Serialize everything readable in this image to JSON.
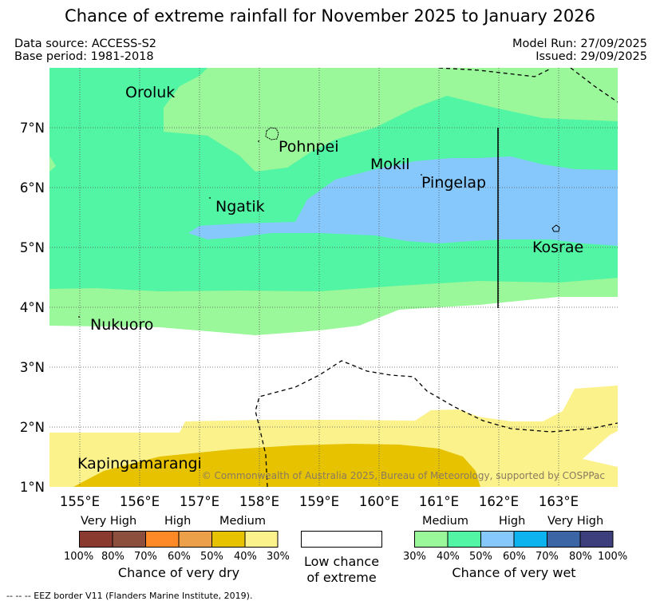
{
  "title": "Chance of extreme rainfall for November 2025 to January 2026",
  "meta": {
    "data_source": "Data source: ACCESS-S2",
    "base_period": "Base period: 1981-2018",
    "model_run": "Model Run: 27/09/2025",
    "issued": "Issued: 29/09/2025"
  },
  "map": {
    "lat_labels": [
      "7°N",
      "6°N",
      "5°N",
      "4°N",
      "3°N",
      "2°N",
      "1°N"
    ],
    "lon_labels": [
      "155°E",
      "156°E",
      "157°E",
      "158°E",
      "159°E",
      "160°E",
      "161°E",
      "162°E",
      "163°E"
    ],
    "places": [
      {
        "name": "Oroluk"
      },
      {
        "name": "Pohnpei"
      },
      {
        "name": "Mokil"
      },
      {
        "name": "Pingelap"
      },
      {
        "name": "Ngatik"
      },
      {
        "name": "Kosrae"
      },
      {
        "name": "Nukuoro"
      },
      {
        "name": "Kapingamarangi"
      }
    ],
    "copyright": "© Commonwealth of Australia 2025, Bureau of Meteorology, supported by COSPPac"
  },
  "legend": {
    "dry": {
      "categories": [
        "Very High",
        "High",
        "Medium"
      ],
      "ticks": [
        "100%",
        "80%",
        "70%",
        "60%",
        "50%",
        "40%",
        "30%"
      ],
      "colors": [
        "#8b3a2f",
        "#8c4f3d",
        "#fd8a26",
        "#eca04a",
        "#e6c200",
        "#fbf28c"
      ],
      "caption": "Chance of very dry"
    },
    "neutral": {
      "caption_line1": "Low chance",
      "caption_line2": "of extreme",
      "color": "#ffffff"
    },
    "wet": {
      "categories": [
        "Medium",
        "High",
        "Very High"
      ],
      "ticks": [
        "30%",
        "40%",
        "50%",
        "60%",
        "70%",
        "80%",
        "100%"
      ],
      "colors": [
        "#9af79a",
        "#52f5a4",
        "#86c8fb",
        "#0cb3ef",
        "#3b65a5",
        "#3c3f7b"
      ],
      "caption": "Chance of very wet"
    }
  },
  "footer": "-- -- -- EEZ border V11 (Flanders Marine Institute, 2019)."
}
